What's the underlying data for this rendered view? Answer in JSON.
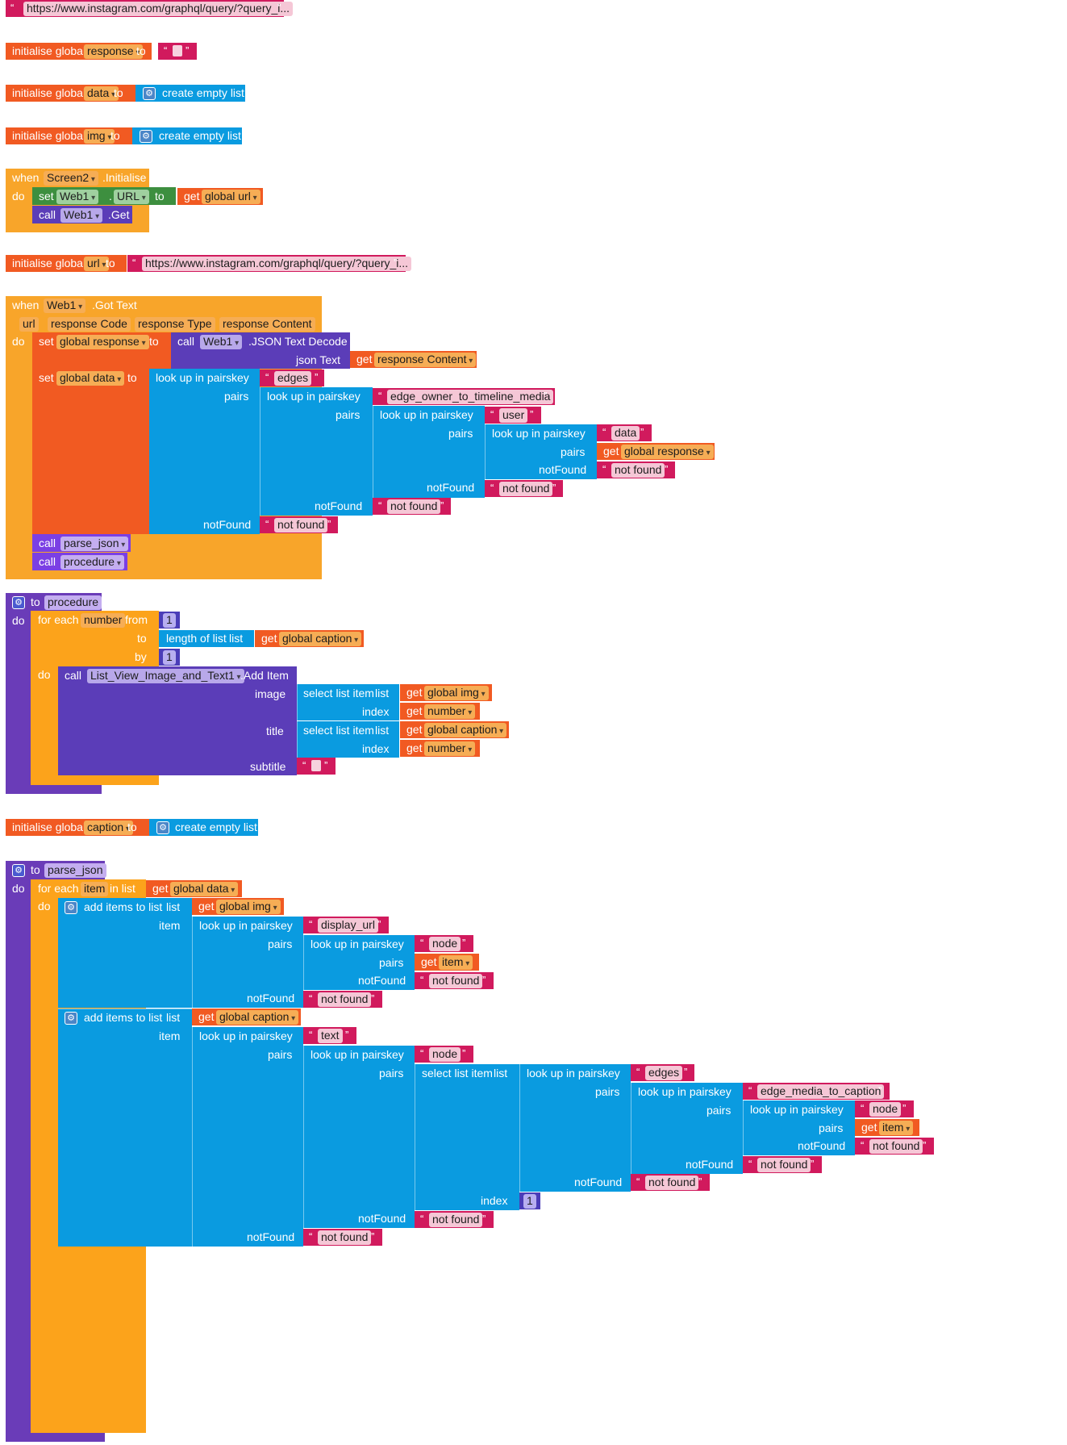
{
  "workspace": {
    "url_text": "https://www.instagram.com/graphql/query/?query_i...",
    "lbl_initialise_global": "initialise global",
    "lbl_to": "to",
    "lbl_when": "when",
    "lbl_do": "do",
    "lbl_set": "set",
    "lbl_call": "call",
    "lbl_get": "get",
    "lbl_dot": ".",
    "lbl_create_empty_list": "create empty list",
    "lbl_look_up_in_pairs": "look up in pairs",
    "lbl_key": "key",
    "lbl_pairs": "pairs",
    "lbl_notFound": "notFound",
    "lbl_not_found": "not found",
    "lbl_for_each": "for each",
    "lbl_from": "from",
    "lbl_by": "by",
    "lbl_in_list": "in list",
    "lbl_length_of_list": "length of list",
    "lbl_list": "list",
    "lbl_select_list_item": "select list item",
    "lbl_index": "index",
    "lbl_add_items_to_list": "add items to list",
    "lbl_item": "item",
    "lbl_image": "image",
    "lbl_title": "title",
    "lbl_subtitle": "subtitle",
    "lbl_json_text": "json Text",
    "lbl_initialise_event": ".Initialise",
    "lbl_got_text_event": ".Got Text",
    "lbl_get_method": ".Get",
    "lbl_json_decode": ".JSON Text Decode",
    "lbl_add_item": ".Add Item",
    "var_response": "response",
    "var_data": "data",
    "var_img": "img",
    "var_url": "url",
    "var_caption": "caption",
    "var_number": "number",
    "var_item": "item",
    "comp_screen2": "Screen2",
    "comp_web1": "Web1",
    "comp_listview": "List_View_Image_and_Text1",
    "prop_url": "URL",
    "get_global_url": "global url",
    "get_global_response": "global response",
    "get_global_data": "global data",
    "get_global_img": "global img",
    "get_global_caption": "global caption",
    "get_response_content": "response Content",
    "get_number": "number",
    "get_item": "item",
    "param_url": "url",
    "param_response_code": "response Code",
    "param_response_type": "response Type",
    "param_response_content": "response Content",
    "proc_parse_json": "parse_json",
    "proc_procedure": "procedure",
    "key_edges": "edges",
    "key_edge_owner": "edge_owner_to_timeline_media",
    "key_user": "user",
    "key_data": "data",
    "key_display_url": "display_url",
    "key_node": "node",
    "key_text": "text",
    "key_edge_media_caption": "edge_media_to_caption",
    "num_one": "1"
  },
  "colors": {
    "variables": "#f15a22",
    "events": "#f8a52a",
    "lists": "#0a9be0",
    "text": "#d11a5d",
    "procedures": "#6a3cb8",
    "component_set": "#3d8f3f",
    "component_call": "#5b3db8",
    "math": "#4a3db8"
  }
}
